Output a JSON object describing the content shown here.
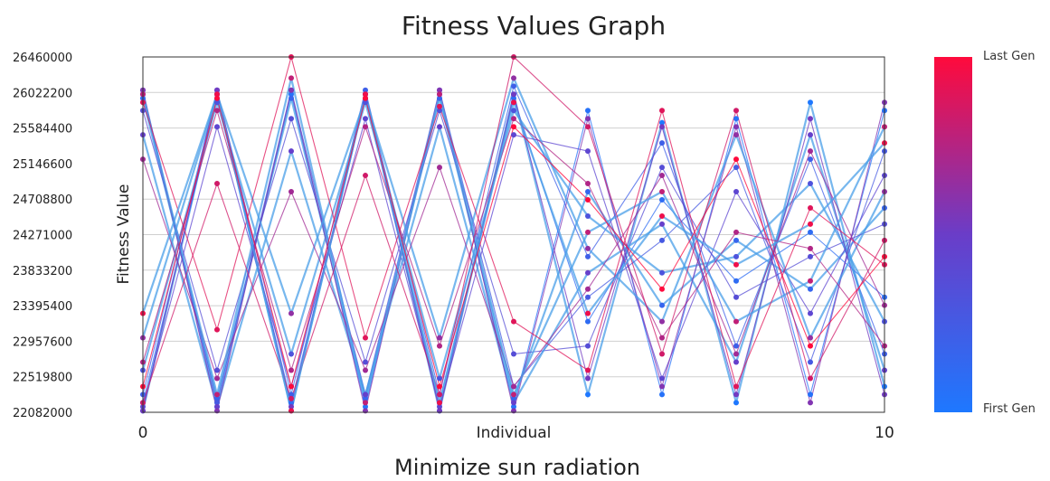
{
  "chart_data": {
    "type": "line",
    "title": "Fitness Values Graph",
    "xlabel": "Minimize sun radiation",
    "ylabel": "Fitness Value",
    "x_ticks": [
      {
        "value": 0,
        "label": "0"
      },
      {
        "value": 5,
        "label": "Individual"
      },
      {
        "value": 10,
        "label": "10"
      }
    ],
    "xlim": [
      0,
      10
    ],
    "ylim": [
      22082000,
      26460000
    ],
    "y_ticks": [
      26460000,
      26022200,
      25584400,
      25146600,
      24708800,
      24271000,
      23833200,
      23395400,
      22957600,
      22519800,
      22082000
    ],
    "grid": true,
    "legend": {
      "type": "colorbar",
      "placement": "right",
      "top_label": "Last Gen",
      "bottom_label": "First Gen",
      "top_color": "#ff0a3c",
      "mid_color": "#6a3dc8",
      "bottom_color": "#1e78ff"
    },
    "series_colors": {
      "first": "#1e78ff",
      "mid": "#6a3dc8",
      "last": "#ff0a3c",
      "dominant_line": "#4a9fe8"
    },
    "series": [
      {
        "values": [
          22100000,
          26000000,
          22100000,
          26000000,
          22100000,
          26000000,
          22300000,
          25650000,
          22200000,
          25900000,
          22400000
        ]
      },
      {
        "values": [
          26000000,
          22150000,
          26000000,
          22150000,
          26000000,
          22150000,
          25800000,
          22300000,
          25700000,
          22300000,
          25800000
        ]
      },
      {
        "values": [
          22200000,
          25950000,
          22200000,
          25950000,
          22200000,
          25950000,
          23200000,
          24700000,
          23700000,
          24300000,
          23500000
        ]
      },
      {
        "values": [
          25950000,
          22250000,
          25950000,
          22250000,
          25950000,
          22250000,
          24800000,
          23400000,
          24200000,
          23600000,
          24600000
        ]
      },
      {
        "values": [
          22300000,
          26050000,
          22300000,
          26050000,
          22300000,
          26100000,
          24000000,
          25400000,
          22900000,
          25200000,
          22800000
        ]
      },
      {
        "values": [
          26050000,
          22200000,
          26050000,
          22300000,
          26050000,
          22400000,
          23500000,
          24200000,
          25100000,
          22700000,
          25300000
        ]
      },
      {
        "values": [
          22600000,
          25900000,
          22800000,
          25900000,
          22500000,
          25800000,
          24500000,
          23800000,
          24000000,
          24900000,
          23200000
        ]
      },
      {
        "values": [
          25800000,
          22600000,
          25700000,
          22700000,
          25800000,
          22800000,
          22900000,
          25100000,
          23500000,
          24000000,
          24400000
        ]
      },
      {
        "values": [
          22150000,
          25600000,
          22400000,
          25700000,
          22150000,
          25500000,
          25300000,
          22500000,
          24800000,
          23300000,
          25000000
        ]
      },
      {
        "values": [
          25500000,
          22150000,
          25300000,
          22300000,
          25600000,
          22200000,
          23800000,
          24400000,
          22700000,
          25500000,
          22600000
        ]
      },
      {
        "values": [
          22100000,
          26050000,
          22150000,
          26000000,
          22100000,
          26000000,
          22500000,
          25600000,
          22300000,
          25700000,
          22300000
        ]
      },
      {
        "values": [
          26050000,
          22100000,
          26050000,
          22100000,
          26050000,
          22100000,
          25700000,
          22400000,
          25600000,
          22200000,
          25900000
        ]
      },
      {
        "values": [
          23000000,
          26000000,
          23300000,
          25950000,
          23000000,
          26200000,
          24100000,
          23200000,
          25500000,
          23000000,
          24800000
        ]
      },
      {
        "values": [
          25200000,
          22500000,
          24800000,
          22600000,
          25100000,
          22400000,
          23600000,
          25000000,
          22800000,
          25300000,
          23400000
        ]
      },
      {
        "values": [
          22700000,
          25800000,
          22600000,
          25600000,
          22900000,
          25700000,
          24900000,
          23000000,
          24300000,
          24100000,
          22900000
        ]
      },
      {
        "values": [
          26000000,
          22300000,
          26200000,
          22200000,
          26000000,
          22300000,
          24300000,
          24800000,
          23200000,
          23700000,
          25600000
        ]
      },
      {
        "values": [
          22200000,
          24900000,
          22250000,
          25000000,
          22300000,
          26460000,
          25600000,
          22800000,
          25800000,
          22500000,
          24200000
        ]
      },
      {
        "values": [
          25900000,
          23100000,
          26460000,
          23000000,
          25850000,
          23200000,
          22600000,
          25800000,
          22400000,
          24600000,
          23900000
        ]
      },
      {
        "values": [
          23300000,
          26000000,
          22100000,
          26000000,
          22200000,
          25900000,
          23300000,
          24500000,
          23900000,
          24400000,
          25400000
        ]
      },
      {
        "values": [
          22400000,
          25950000,
          22400000,
          25950000,
          22400000,
          25600000,
          24700000,
          23600000,
          25200000,
          22900000,
          24000000
        ]
      }
    ]
  }
}
